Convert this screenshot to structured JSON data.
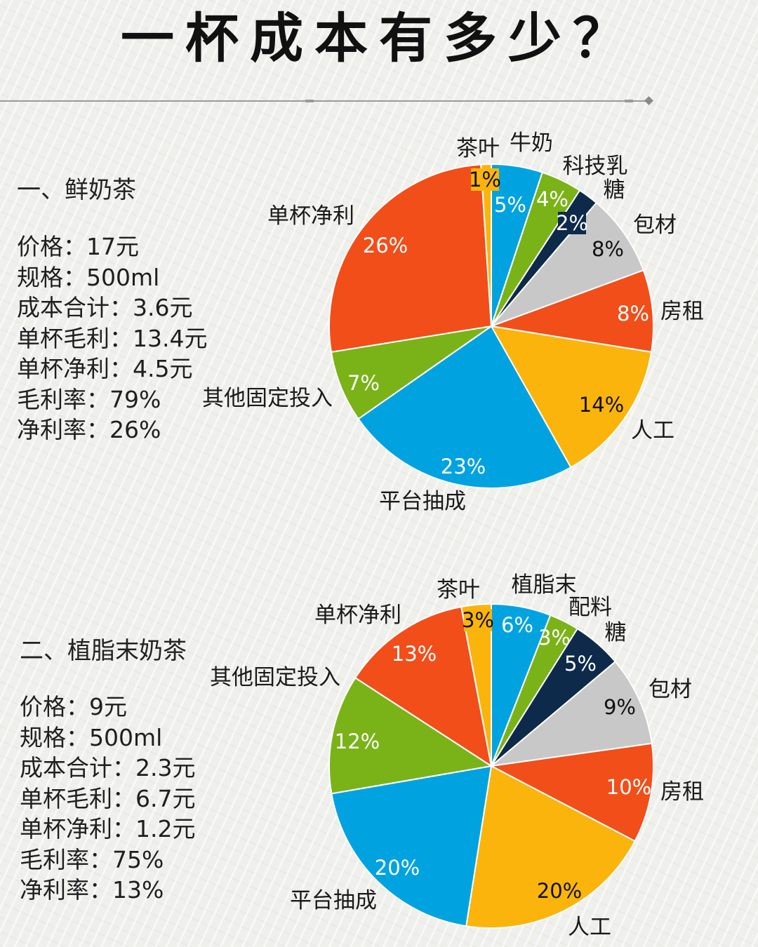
{
  "title": "一杯成本有多少？",
  "sections": [
    {
      "heading": "一、鲜奶茶",
      "info": [
        {
          "label": "价格",
          "value": "17元"
        },
        {
          "label": "规格",
          "value": "500ml"
        },
        {
          "label": "成本合计",
          "value": "3.6元"
        },
        {
          "label": "单杯毛利",
          "value": "13.4元"
        },
        {
          "label": "单杯净利",
          "value": "4.5元"
        },
        {
          "label": "毛利率",
          "value": "79%"
        },
        {
          "label": "净利率",
          "value": "26%"
        }
      ]
    },
    {
      "heading": "二、植脂末奶茶",
      "info": [
        {
          "label": "价格",
          "value": "9元"
        },
        {
          "label": "规格",
          "value": "500ml"
        },
        {
          "label": "成本合计",
          "value": "2.3元"
        },
        {
          "label": "单杯毛利",
          "value": "6.7元"
        },
        {
          "label": "单杯净利",
          "value": "1.2元"
        },
        {
          "label": "毛利率",
          "value": "75%"
        },
        {
          "label": "净利率",
          "value": "13%"
        }
      ]
    }
  ],
  "chart_data": [
    {
      "type": "pie",
      "slices": [
        {
          "name": "牛奶",
          "value": 5,
          "label": "5%",
          "color": "#00a3e0"
        },
        {
          "name": "科技乳",
          "value": 4,
          "label": "4%",
          "color": "#7ab317"
        },
        {
          "name": "糖",
          "value": 2,
          "label": "2%",
          "color": "#0e2a4a"
        },
        {
          "name": "包材",
          "value": 8,
          "label": "8%",
          "color": "#c8c8c8"
        },
        {
          "name": "房租",
          "value": 8,
          "label": "8%",
          "color": "#f24e1a"
        },
        {
          "name": "人工",
          "value": 14,
          "label": "14%",
          "color": "#fbb40b"
        },
        {
          "name": "平台抽成",
          "value": 23,
          "label": "23%",
          "color": "#00a3e0"
        },
        {
          "name": "其他固定投入",
          "value": 7,
          "label": "7%",
          "color": "#7ab317"
        },
        {
          "name": "单杯净利",
          "value": 26,
          "label": "26%",
          "color": "#f24e1a"
        },
        {
          "name": "茶叶",
          "value": 1,
          "label": "1%",
          "color": "#fbb40b"
        }
      ]
    },
    {
      "type": "pie",
      "slices": [
        {
          "name": "植脂末",
          "value": 6,
          "label": "6%",
          "color": "#00a3e0"
        },
        {
          "name": "配料",
          "value": 3,
          "label": "3%",
          "color": "#7ab317"
        },
        {
          "name": "糖",
          "value": 5,
          "label": "5%",
          "color": "#0e2a4a"
        },
        {
          "name": "包材",
          "value": 9,
          "label": "9%",
          "color": "#c8c8c8"
        },
        {
          "name": "房租",
          "value": 10,
          "label": "10%",
          "color": "#f24e1a"
        },
        {
          "name": "人工",
          "value": 20,
          "label": "20%",
          "color": "#fbb40b"
        },
        {
          "name": "平台抽成",
          "value": 20,
          "label": "20%",
          "color": "#00a3e0"
        },
        {
          "name": "其他固定投入",
          "value": 12,
          "label": "12%",
          "color": "#7ab317"
        },
        {
          "name": "单杯净利",
          "value": 13,
          "label": "13%",
          "color": "#f24e1a"
        },
        {
          "name": "茶叶",
          "value": 3,
          "label": "3%",
          "color": "#fbb40b"
        }
      ]
    }
  ]
}
